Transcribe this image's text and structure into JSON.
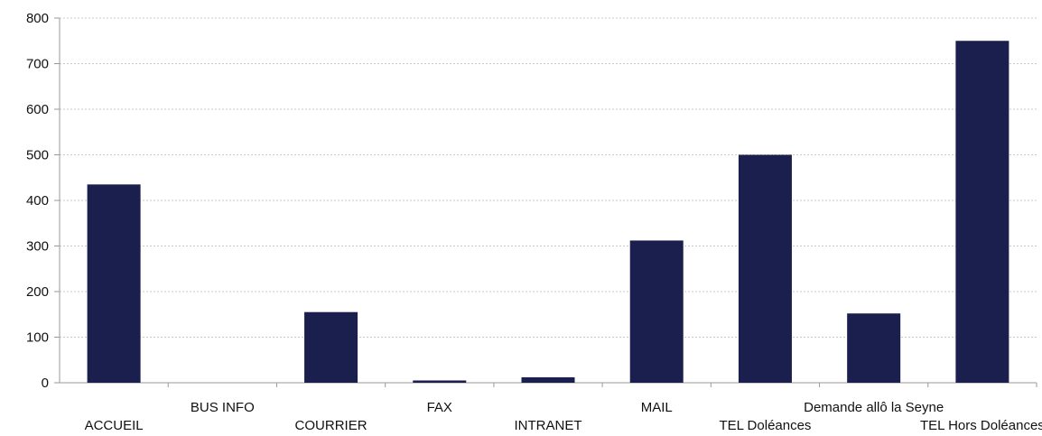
{
  "chart_data": {
    "type": "bar",
    "categories": [
      "ACCUEIL",
      "BUS INFO",
      "COURRIER",
      "FAX",
      "INTRANET",
      "MAIL",
      "TEL Doléances",
      "Demande allô la Seyne",
      "TEL Hors Doléances"
    ],
    "values": [
      435,
      0,
      155,
      5,
      12,
      312,
      500,
      152,
      750
    ],
    "ylim": [
      0,
      800
    ],
    "yticks": [
      0,
      100,
      200,
      300,
      400,
      500,
      600,
      700,
      800
    ],
    "grid": true,
    "legend": "none",
    "bar_color": "#1b1f4d",
    "grid_color": "#c8c8c8",
    "axis_color": "#9a9a9a"
  }
}
